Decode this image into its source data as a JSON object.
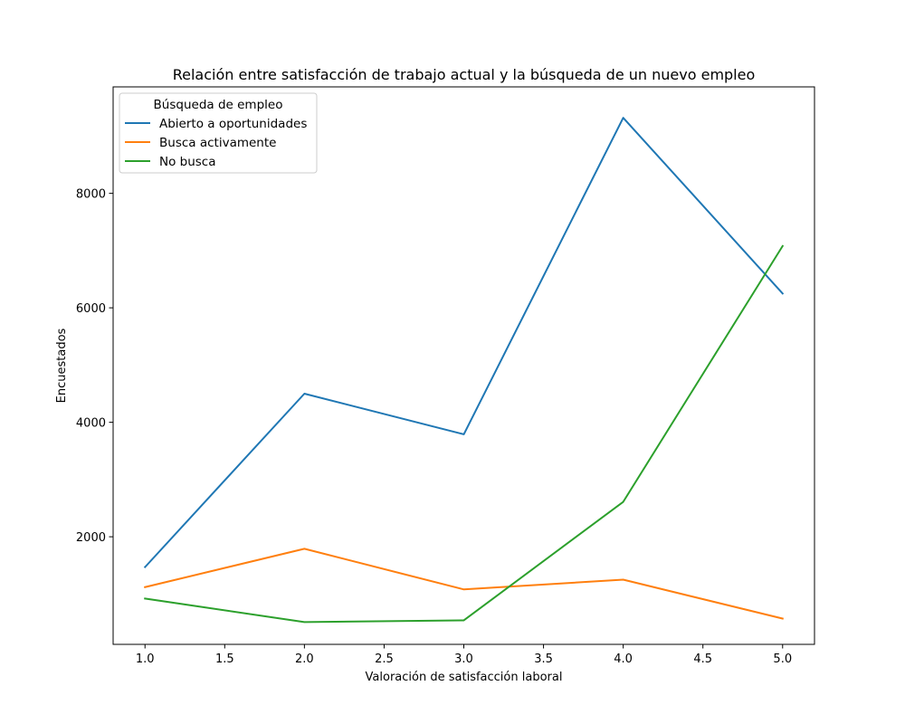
{
  "chart_data": {
    "type": "line",
    "title": "Relación entre satisfacción de trabajo actual y la búsqueda de un nuevo empleo",
    "xlabel": "Valoración de satisfacción laboral",
    "ylabel": "Encuestados",
    "x": [
      1.0,
      2.0,
      3.0,
      4.0,
      5.0
    ],
    "xlim": [
      0.8,
      5.2
    ],
    "ylim": [
      120,
      9860
    ],
    "x_ticks": [
      1.0,
      1.5,
      2.0,
      2.5,
      3.0,
      3.5,
      4.0,
      4.5,
      5.0
    ],
    "x_tick_labels": [
      "1.0",
      "1.5",
      "2.0",
      "2.5",
      "3.0",
      "3.5",
      "4.0",
      "4.5",
      "5.0"
    ],
    "y_ticks": [
      2000,
      4000,
      6000,
      8000
    ],
    "y_tick_labels": [
      "2000",
      "4000",
      "6000",
      "8000"
    ],
    "grid": false,
    "legend": {
      "title": "Búsqueda de empleo",
      "placement": "top-left"
    },
    "series": [
      {
        "name": "Abierto a oportunidades",
        "color": "#1f77b4",
        "values": [
          1470,
          4500,
          3790,
          9320,
          6250
        ]
      },
      {
        "name": "Busca activamente",
        "color": "#ff7f0e",
        "values": [
          1120,
          1790,
          1080,
          1250,
          570
        ]
      },
      {
        "name": "No busca",
        "color": "#2ca02c",
        "values": [
          920,
          510,
          540,
          2610,
          7080
        ]
      }
    ]
  }
}
